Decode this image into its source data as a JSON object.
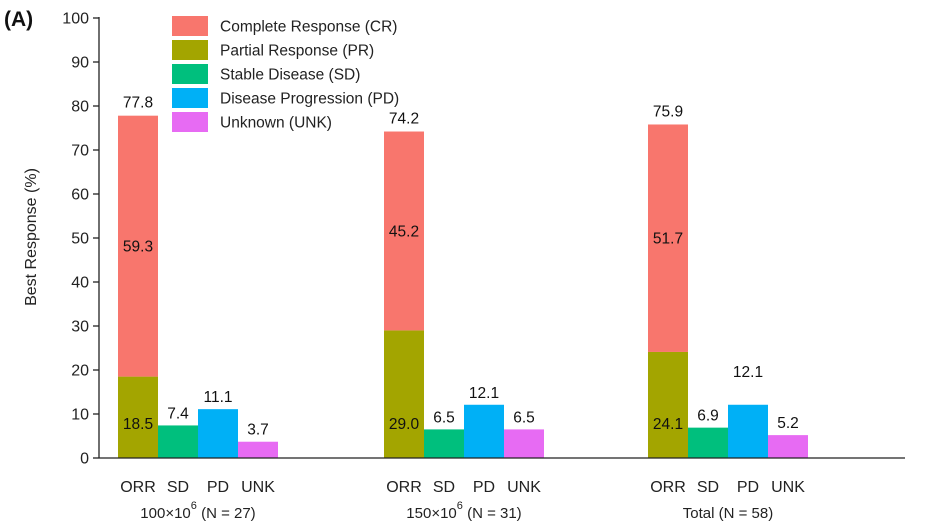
{
  "panel_label": "(A)",
  "chart_data": {
    "type": "bar",
    "ylabel": "Best Response (%)",
    "ylim": [
      0,
      100
    ],
    "yticks": [
      0,
      10,
      20,
      30,
      40,
      50,
      60,
      70,
      80,
      90,
      100
    ],
    "categories": [
      "ORR",
      "SD",
      "PD",
      "UNK"
    ],
    "legend_placement": "top-left",
    "colors": {
      "CR": "#F8766D",
      "PR": "#A3A500",
      "SD": "#00BF7D",
      "PD": "#00B0F6",
      "UNK": "#E76BF3"
    },
    "legend": [
      {
        "key": "CR",
        "label": "Complete Response (CR)"
      },
      {
        "key": "PR",
        "label": "Partial Response (PR)"
      },
      {
        "key": "SD",
        "label": "Stable Disease (SD)"
      },
      {
        "key": "PD",
        "label": "Disease Progression (PD)"
      },
      {
        "key": "UNK",
        "label": "Unknown (UNK)"
      }
    ],
    "groups": [
      {
        "label_base": "100×10",
        "label_sup": "6",
        "label_n": "(N = 27)",
        "orr_label": "77.8",
        "cr": 59.3,
        "cr_label": "59.3",
        "pr": 18.5,
        "pr_label": "18.5",
        "sd": 7.4,
        "sd_label": "7.4",
        "pd": 11.1,
        "pd_label": "11.1",
        "unk": 3.7,
        "unk_label": "3.7"
      },
      {
        "label_base": "150×10",
        "label_sup": "6",
        "label_n": "(N = 31)",
        "orr_label": "74.2",
        "cr": 45.2,
        "cr_label": "45.2",
        "pr": 29.0,
        "pr_label": "29.0",
        "sd": 6.5,
        "sd_label": "6.5",
        "pd": 12.1,
        "pd_label": "12.1",
        "unk": 6.5,
        "unk_label": "6.5"
      },
      {
        "label_base": "Total",
        "label_sup": "",
        "label_n": "(N = 58)",
        "orr_label": "75.9",
        "cr": 51.7,
        "cr_label": "51.7",
        "pr": 24.1,
        "pr_label": "24.1",
        "sd": 6.9,
        "sd_label": "6.9",
        "pd": 12.1,
        "pd_label": "12.1",
        "unk": 5.2,
        "unk_label": "5.2"
      }
    ]
  }
}
